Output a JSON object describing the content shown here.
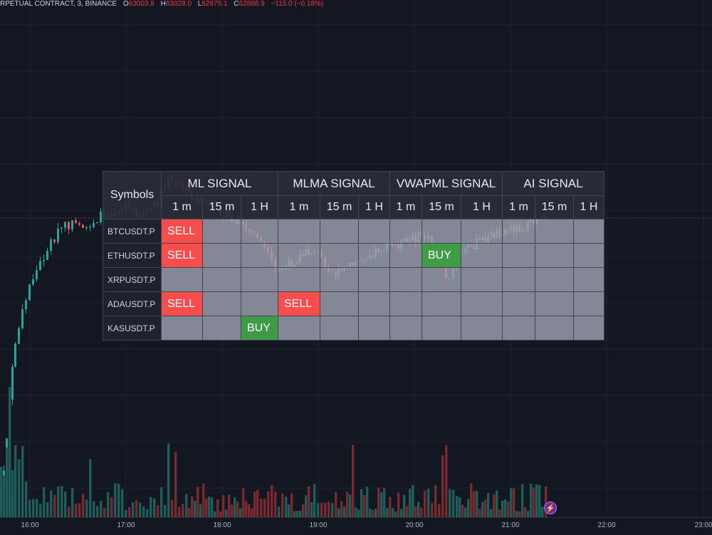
{
  "legend": {
    "symbol": "RPETUAL CONTRACT, 3, BINANCE",
    "open_label": "O",
    "open": "63003.8",
    "high_label": "H",
    "high": "63028.0",
    "low_label": "L",
    "low": "62875.1",
    "close_label": "C",
    "close": "62888.9",
    "change": "−115.0 (−0.18%)"
  },
  "time_axis": [
    "16:00",
    "17:00",
    "18:00",
    "19:00",
    "20:00",
    "21:00",
    "22:00",
    "23:00"
  ],
  "colors": {
    "background": "#131722",
    "up": "#26a69a",
    "down": "#ef5350",
    "sell": "#f74d4d",
    "buy": "#3f9b46",
    "cell": "#9da0b0"
  },
  "table": {
    "symbols_header": "Symbols",
    "groups": [
      "ML SIGNAL",
      "MLMA SIGNAL",
      "VWAPML SIGNAL",
      "AI SIGNAL"
    ],
    "timeframes": [
      "1 m",
      "15 m",
      "1 H"
    ],
    "rows": [
      {
        "symbol": "BTCUSDT.P",
        "cells": [
          "SELL",
          "",
          "",
          "",
          "",
          "",
          "",
          "",
          "",
          "",
          "",
          ""
        ]
      },
      {
        "symbol": "ETHUSDT.P",
        "cells": [
          "SELL",
          "",
          "",
          "",
          "",
          "",
          "",
          "BUY",
          "",
          "",
          "",
          ""
        ]
      },
      {
        "symbol": "XRPUSDT.P",
        "cells": [
          "",
          "",
          "",
          "",
          "",
          "",
          "",
          "",
          "",
          "",
          "",
          ""
        ]
      },
      {
        "symbol": "ADAUSDT.P",
        "cells": [
          "SELL",
          "",
          "",
          "SELL",
          "",
          "",
          "",
          "",
          "",
          "",
          "",
          ""
        ]
      },
      {
        "symbol": "KASUSDT.P",
        "cells": [
          "",
          "",
          "BUY",
          "",
          "",
          "",
          "",
          "",
          "",
          "",
          "",
          ""
        ]
      }
    ]
  },
  "icons": {
    "alert": "lightning-icon"
  }
}
